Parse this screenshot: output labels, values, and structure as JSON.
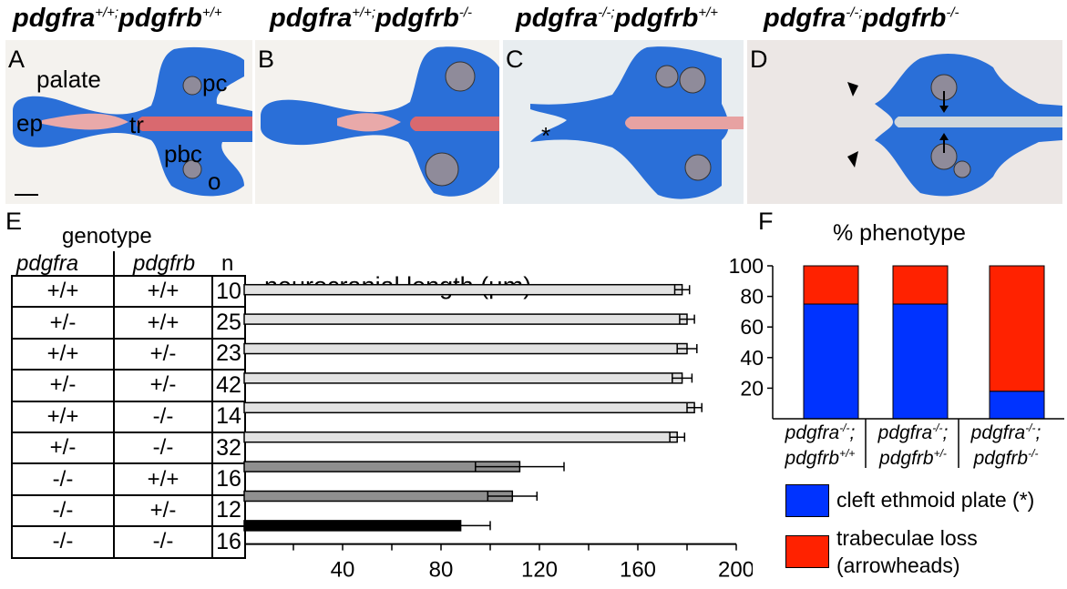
{
  "panel_titles": [
    {
      "fra_base": "pdgfra",
      "fra_sup": "+/+;",
      "frb_base": "pdgfrb",
      "frb_sup": "+/+"
    },
    {
      "fra_base": "pdgfra",
      "fra_sup": "+/+;",
      "frb_base": "pdgfrb",
      "frb_sup": "-/-"
    },
    {
      "fra_base": "pdgfra",
      "fra_sup": "-/-;",
      "frb_base": "pdgfrb",
      "frb_sup": "+/+"
    },
    {
      "fra_base": "pdgfra",
      "fra_sup": "-/-;",
      "frb_base": "pdgfrb",
      "frb_sup": "-/-"
    }
  ],
  "panel_labels": [
    "A",
    "B",
    "C",
    "D",
    "E",
    "F"
  ],
  "panel_a_annotations": {
    "palate": "palate",
    "pc": "pc",
    "ep": "ep",
    "tr": "tr",
    "pbc": "pbc",
    "o": "o"
  },
  "panel_c_marker": "*",
  "colors": {
    "cartilage": "#1f63d6",
    "tissue_red": "#e07b88",
    "bar_light": "#e2e2e2",
    "bar_mid": "#8f8f8f",
    "bar_dark": "#000000",
    "cleft_blue": "#0033ff",
    "loss_red": "#ff2200"
  },
  "table": {
    "header_group": "genotype",
    "col1": "pdgfra",
    "col2": "pdgfrb",
    "col3": "n",
    "rows": [
      {
        "a": "+/+",
        "b": "+/+",
        "n": "10"
      },
      {
        "a": "+/-",
        "b": "+/+",
        "n": "25"
      },
      {
        "a": "+/+",
        "b": "+/-",
        "n": "23"
      },
      {
        "a": "+/-",
        "b": "+/-",
        "n": "42"
      },
      {
        "a": "+/+",
        "b": "-/-",
        "n": "14"
      },
      {
        "a": "+/-",
        "b": "-/-",
        "n": "32"
      },
      {
        "a": "-/-",
        "b": "+/+",
        "n": "16"
      },
      {
        "a": "-/-",
        "b": "+/-",
        "n": "12"
      },
      {
        "a": "-/-",
        "b": "-/-",
        "n": "16"
      }
    ]
  },
  "chart_data": [
    {
      "type": "bar",
      "orientation": "horizontal",
      "title": "neurocranial length (μm)",
      "categories": [
        "+/+ ; +/+",
        "+/- ; +/+",
        "+/+ ; +/-",
        "+/- ; +/-",
        "+/+ ; -/-",
        "+/- ; -/-",
        "-/- ; +/+",
        "-/- ; +/-",
        "-/- ; -/-"
      ],
      "values": [
        178,
        180,
        180,
        178,
        183,
        176,
        112,
        109,
        88
      ],
      "errors": [
        3,
        3,
        4,
        4,
        3,
        3,
        18,
        10,
        12
      ],
      "bar_shades": [
        "light",
        "light",
        "light",
        "light",
        "light",
        "light",
        "mid",
        "mid",
        "dark"
      ],
      "xlim": [
        0,
        200
      ],
      "xticks": [
        "40",
        "80",
        "120",
        "160",
        "200"
      ],
      "grid": false
    },
    {
      "type": "bar",
      "stacked": true,
      "title": "% phenotype",
      "categories": [
        {
          "line1_base": "pdgfra",
          "line1_sup": "-/-",
          "line1_end": ";",
          "line2_base": "pdgfrb",
          "line2_sup": "+/+"
        },
        {
          "line1_base": "pdgfra",
          "line1_sup": "-/-",
          "line1_end": ";",
          "line2_base": "pdgfrb",
          "line2_sup": "+/-"
        },
        {
          "line1_base": "pdgfra",
          "line1_sup": "-/-",
          "line1_end": ";",
          "line2_base": "pdgfrb",
          "line2_sup": "-/-"
        }
      ],
      "series": [
        {
          "name": "cleft ethmoid plate (*)",
          "values": [
            75,
            75,
            18
          ]
        },
        {
          "name": "trabeculae loss (arrowheads)",
          "values": [
            25,
            25,
            82
          ]
        }
      ],
      "ylim": [
        0,
        100
      ],
      "yticks": [
        "20",
        "40",
        "60",
        "80",
        "100"
      ],
      "legend": {
        "position": "bottom",
        "items": [
          {
            "line1": "cleft ethmoid plate (*)",
            "line2": ""
          },
          {
            "line1": "trabeculae loss",
            "line2": "(arrowheads)"
          }
        ]
      },
      "grid": false
    }
  ]
}
